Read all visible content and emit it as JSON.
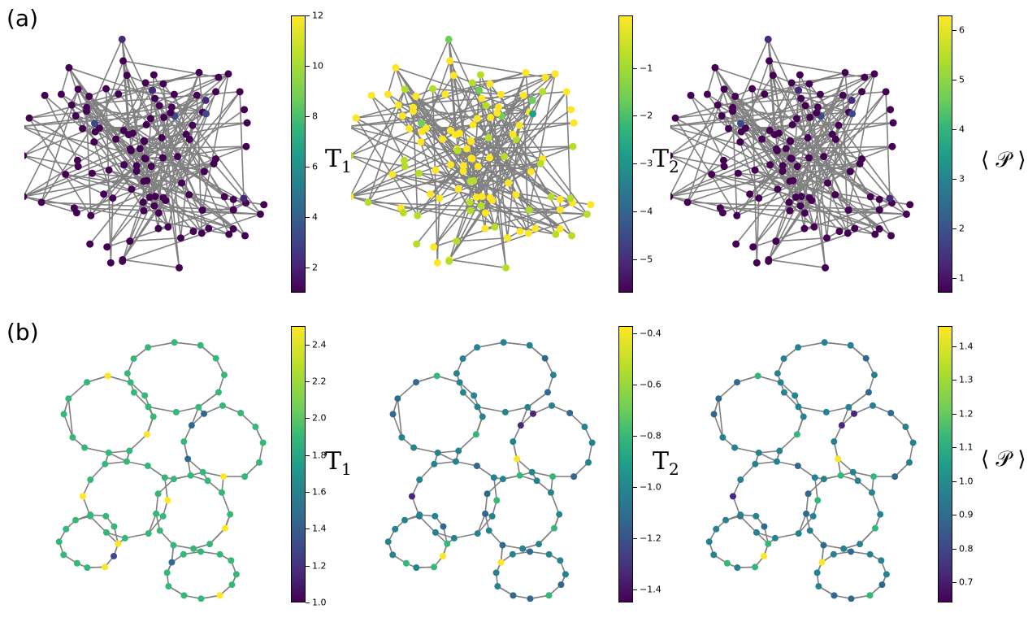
{
  "row_labels": {
    "a": "(a)",
    "b": "(b)"
  },
  "panels": [
    {
      "id": "a1",
      "row": "a",
      "colorbar": {
        "label_main": "T",
        "label_sub": "1",
        "ticks": [
          "2",
          "4",
          "6",
          "8",
          "10",
          "12"
        ],
        "vmin": 1.0,
        "vmax": 12.0,
        "tick_values": [
          2,
          4,
          6,
          8,
          10,
          12
        ]
      },
      "dominant": "low"
    },
    {
      "id": "a2",
      "row": "a",
      "colorbar": {
        "label_main": "T",
        "label_sub": "2",
        "ticks": [
          "−1",
          "−2",
          "−3",
          "−4",
          "−5"
        ],
        "vmin": -5.7,
        "vmax": 0.1,
        "tick_values": [
          -1,
          -2,
          -3,
          -4,
          -5
        ]
      },
      "dominant": "high"
    },
    {
      "id": "a3",
      "row": "a",
      "colorbar": {
        "label_main": "⟨ 𝒫 ⟩",
        "label_sub": "",
        "ticks": [
          "1",
          "2",
          "3",
          "4",
          "5",
          "6"
        ],
        "vmin": 0.7,
        "vmax": 6.3,
        "tick_values": [
          1,
          2,
          3,
          4,
          5,
          6
        ]
      },
      "dominant": "low"
    },
    {
      "id": "b1",
      "row": "b",
      "colorbar": {
        "label_main": "T",
        "label_sub": "1",
        "ticks": [
          "1.0",
          "1.2",
          "1.4",
          "1.6",
          "1.8",
          "2.0",
          "2.2",
          "2.4"
        ],
        "vmin": 1.0,
        "vmax": 2.5,
        "tick_values": [
          1.0,
          1.2,
          1.4,
          1.6,
          1.8,
          2.0,
          2.2,
          2.4
        ]
      },
      "dominant": "mid"
    },
    {
      "id": "b2",
      "row": "b",
      "colorbar": {
        "label_main": "T",
        "label_sub": "2",
        "ticks": [
          "−0.4",
          "−0.6",
          "−0.8",
          "−1.0",
          "−1.2",
          "−1.4"
        ],
        "vmin": -1.45,
        "vmax": -0.37,
        "tick_values": [
          -0.4,
          -0.6,
          -0.8,
          -1.0,
          -1.2,
          -1.4
        ]
      },
      "dominant": "midlow"
    },
    {
      "id": "b3",
      "row": "b",
      "colorbar": {
        "label_main": "⟨ 𝒫 ⟩",
        "label_sub": "",
        "ticks": [
          "0.7",
          "0.8",
          "0.9",
          "1.0",
          "1.1",
          "1.2",
          "1.3",
          "1.4"
        ],
        "vmin": 0.64,
        "vmax": 1.46,
        "tick_values": [
          0.7,
          0.8,
          0.9,
          1.0,
          1.1,
          1.2,
          1.3,
          1.4
        ]
      },
      "dominant": "midlow"
    }
  ],
  "colors": {
    "edge": "#808080",
    "background": "#ffffff"
  }
}
